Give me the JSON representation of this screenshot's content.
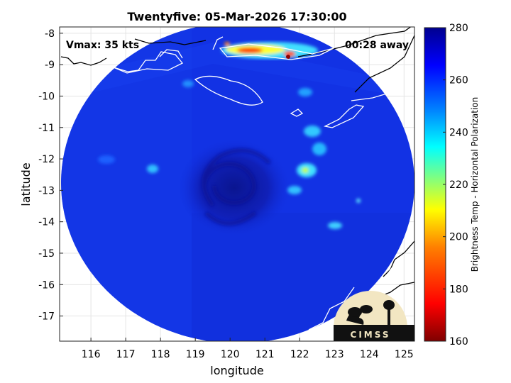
{
  "chart_data": {
    "type": "heatmap",
    "title": "Twentyfive: 05-Mar-2026 17:30:00",
    "xlabel": "longitude",
    "ylabel": "latitude",
    "xlim": [
      115.1,
      125.3
    ],
    "ylim": [
      -17.8,
      -7.8
    ],
    "xticks": [
      116,
      117,
      118,
      119,
      120,
      121,
      122,
      123,
      124,
      125
    ],
    "yticks": [
      -8,
      -9,
      -10,
      -11,
      -12,
      -13,
      -14,
      -15,
      -16,
      -17
    ],
    "grid": true,
    "colorbar": {
      "label": "Brightness Temp - Horizontal Polarization",
      "range": [
        160,
        280
      ],
      "ticks": [
        280,
        260,
        240,
        220,
        200,
        180,
        160
      ],
      "colormap": "jet",
      "stops": [
        "#7f0000",
        "#ff0000",
        "#ff7f00",
        "#ffff00",
        "#7fff7f",
        "#00ffff",
        "#007fff",
        "#0000ff",
        "#00008f"
      ]
    },
    "annotations": {
      "vmax": "Vmax: 35 kts",
      "time_offset": "00:28 away"
    },
    "logo_text": "CIMSS",
    "storm_center": {
      "lon": 120.0,
      "lat": -13.0
    },
    "colors": {
      "background_tb": "#1030e0",
      "core_tb": "#0a1a9a",
      "coast_outline": "#ffffff"
    }
  }
}
